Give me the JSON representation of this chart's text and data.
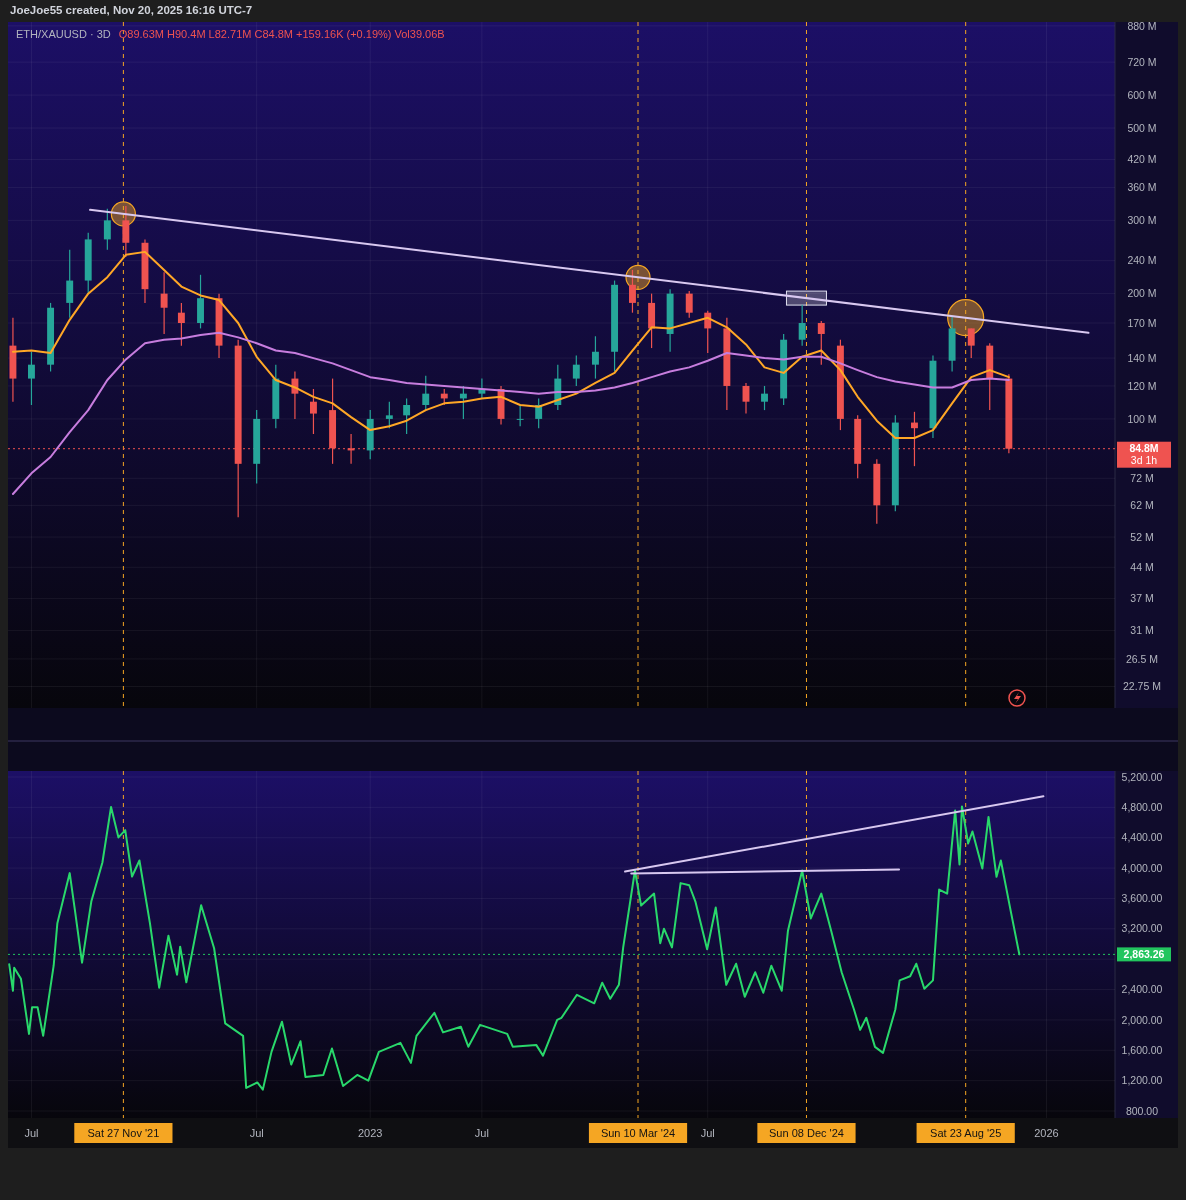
{
  "chart_data": [
    {
      "type": "candlestick",
      "title": "ETH/XAUUSD · 3D",
      "subtitle": "O89.63M H90.4M L82.71M C84.8M +159.16K (+0.19%) Vol39.06B",
      "annotations": [
        "JoeJoe55 created, Nov 20, 2025 16:16 UTC-7"
      ],
      "x": [
        "2021-06-01",
        "2021-07-01",
        "2021-08-01",
        "2021-09-01",
        "2021-10-01",
        "2021-11-01",
        "2021-12-01",
        "2022-01-01",
        "2022-02-01",
        "2022-03-01",
        "2022-04-01",
        "2022-05-01",
        "2022-06-01",
        "2022-07-01",
        "2022-08-01",
        "2022-09-01",
        "2022-10-01",
        "2022-11-01",
        "2022-12-01",
        "2023-01-01",
        "2023-02-01",
        "2023-03-01",
        "2023-04-01",
        "2023-05-01",
        "2023-06-01",
        "2023-07-01",
        "2023-08-01",
        "2023-09-01",
        "2023-10-01",
        "2023-11-01",
        "2023-12-01",
        "2024-01-01",
        "2024-02-01",
        "2024-03-01",
        "2024-04-01",
        "2024-05-01",
        "2024-06-01",
        "2024-07-01",
        "2024-08-01",
        "2024-09-01",
        "2024-10-01",
        "2024-11-01",
        "2024-12-01",
        "2025-01-01",
        "2025-02-01",
        "2025-03-01",
        "2025-04-01",
        "2025-05-01",
        "2025-06-01",
        "2025-07-01",
        "2025-08-01",
        "2025-09-01",
        "2025-10-01",
        "2025-11-01"
      ],
      "ohlc": [
        [
          150,
          175,
          110,
          125
        ],
        [
          125,
          145,
          108,
          135
        ],
        [
          135,
          190,
          130,
          185
        ],
        [
          190,
          255,
          175,
          215
        ],
        [
          215,
          280,
          200,
          270
        ],
        [
          270,
          320,
          255,
          300
        ],
        [
          300,
          325,
          245,
          265
        ],
        [
          265,
          270,
          190,
          205
        ],
        [
          200,
          225,
          160,
          185
        ],
        [
          180,
          190,
          150,
          170
        ],
        [
          170,
          222,
          165,
          195
        ],
        [
          195,
          200,
          140,
          150
        ],
        [
          150,
          155,
          58,
          78
        ],
        [
          78,
          105,
          70,
          100
        ],
        [
          100,
          135,
          95,
          125
        ],
        [
          125,
          130,
          100,
          115
        ],
        [
          110,
          118,
          92,
          103
        ],
        [
          105,
          125,
          78,
          85
        ],
        [
          85,
          92,
          78,
          84
        ],
        [
          84,
          105,
          80,
          100
        ],
        [
          100,
          110,
          95,
          102
        ],
        [
          102,
          112,
          92,
          108
        ],
        [
          108,
          127,
          105,
          115
        ],
        [
          115,
          118,
          108,
          112
        ],
        [
          112,
          120,
          100,
          115
        ],
        [
          115,
          125,
          112,
          118
        ],
        [
          118,
          120,
          97,
          100
        ],
        [
          100,
          108,
          96,
          100
        ],
        [
          100,
          112,
          95,
          108
        ],
        [
          108,
          135,
          105,
          125
        ],
        [
          125,
          142,
          120,
          135
        ],
        [
          135,
          158,
          125,
          145
        ],
        [
          145,
          215,
          130,
          210
        ],
        [
          210,
          228,
          180,
          190
        ],
        [
          190,
          200,
          148,
          165
        ],
        [
          160,
          205,
          145,
          200
        ],
        [
          200,
          203,
          175,
          180
        ],
        [
          180,
          182,
          144,
          165
        ],
        [
          165,
          175,
          105,
          120
        ],
        [
          120,
          122,
          103,
          110
        ],
        [
          110,
          120,
          105,
          115
        ],
        [
          112,
          160,
          108,
          155
        ],
        [
          155,
          188,
          150,
          170
        ],
        [
          170,
          172,
          135,
          160
        ],
        [
          150,
          155,
          94,
          100
        ],
        [
          100,
          102,
          72,
          78
        ],
        [
          78,
          80,
          56,
          62
        ],
        [
          62,
          102,
          60,
          98
        ],
        [
          98,
          104,
          77,
          95
        ],
        [
          95,
          142,
          90,
          138
        ],
        [
          138,
          176,
          130,
          165
        ],
        [
          165,
          165,
          140,
          150
        ],
        [
          150,
          152,
          105,
          125
        ],
        [
          125,
          128,
          82.71,
          84.8
        ]
      ],
      "colors": [
        "#ef5350",
        "#26a69a",
        "#26a69a",
        "#26a69a",
        "#26a69a",
        "#26a69a",
        "#ef5350",
        "#ef5350",
        "#ef5350",
        "#ef5350",
        "#26a69a",
        "#ef5350",
        "#ef5350",
        "#26a69a",
        "#26a69a",
        "#ef5350",
        "#ef5350",
        "#ef5350",
        "#ef5350",
        "#26a69a",
        "#26a69a",
        "#26a69a",
        "#26a69a",
        "#ef5350",
        "#26a69a",
        "#26a69a",
        "#ef5350",
        "#26a69a",
        "#26a69a",
        "#26a69a",
        "#26a69a",
        "#26a69a",
        "#26a69a",
        "#ef5350",
        "#ef5350",
        "#26a69a",
        "#ef5350",
        "#ef5350",
        "#ef5350",
        "#ef5350",
        "#26a69a",
        "#26a69a",
        "#26a69a",
        "#ef5350",
        "#ef5350",
        "#ef5350",
        "#ef5350",
        "#26a69a",
        "#ef5350",
        "#26a69a",
        "#26a69a",
        "#ef5350",
        "#ef5350",
        "#ef5350"
      ],
      "series": [
        {
          "type": "line",
          "color": "#ffa726",
          "values": [
            145,
            146,
            144,
            173,
            200,
            219,
            248,
            252,
            228,
            208,
            198,
            193,
            170,
            141,
            124,
            119,
            113,
            109,
            101,
            94,
            96,
            99,
            105,
            109,
            110,
            112,
            113,
            108,
            107,
            111,
            115,
            122,
            129,
            146,
            166,
            165,
            170,
            175,
            166,
            151,
            133,
            129,
            141,
            146,
            131,
            113,
            99,
            90,
            90,
            94,
            109,
            126,
            131,
            126
          ]
        },
        {
          "type": "line",
          "color": "#c77dde",
          "values": [
            66,
            74,
            81,
            93,
            105,
            124,
            139,
            152,
            155,
            156,
            159,
            161,
            157,
            152,
            146,
            144,
            140,
            136,
            131,
            126,
            124,
            122,
            121,
            120,
            119,
            118,
            117,
            116,
            115,
            116,
            116,
            117,
            119,
            122,
            126,
            130,
            133,
            138,
            144,
            142,
            140,
            139,
            141,
            141,
            136,
            131,
            126,
            123,
            121,
            119,
            119,
            124,
            125,
            124
          ]
        },
        {
          "type": "line",
          "color": "#d8c8f0",
          "x": [
            "2021-10-04",
            "2026-03-10"
          ],
          "values": [
            318,
            161
          ]
        }
      ],
      "log": true,
      "grid": true,
      "tick_labels": "y",
      "xlim": [
        "2021-05-24",
        "2026-04-22"
      ],
      "xticks": [
        {
          "value": "2021-07-01",
          "label": null
        },
        {
          "value": "2022-07-01",
          "label": null
        },
        {
          "value": "2023-01-01",
          "label": null
        },
        {
          "value": "2023-07-01",
          "label": null
        },
        {
          "value": "2024-07-01",
          "label": null
        },
        {
          "value": "2026-01-01",
          "label": null
        }
      ],
      "ylim": [
        20.2,
        899
      ],
      "yticks": [
        {
          "value": 880,
          "label": "880 M"
        },
        {
          "value": 720,
          "label": "720 M"
        },
        {
          "value": 600,
          "label": "600 M"
        },
        {
          "value": 500,
          "label": "500 M"
        },
        {
          "value": 420,
          "label": "420 M"
        },
        {
          "value": 360,
          "label": "360 M"
        },
        {
          "value": 300,
          "label": "300 M"
        },
        {
          "value": 240,
          "label": "240 M"
        },
        {
          "value": 200,
          "label": "200 M"
        },
        {
          "value": 170,
          "label": "170 M"
        },
        {
          "value": 140,
          "label": "140 M"
        },
        {
          "value": 120,
          "label": "120 M"
        },
        {
          "value": 100,
          "label": "100 M"
        },
        {
          "value": 72,
          "label": "72 M"
        },
        {
          "value": 62,
          "label": "62 M"
        },
        {
          "value": 52,
          "label": "52 M"
        },
        {
          "value": 44,
          "label": "44 M"
        },
        {
          "value": 37,
          "label": "37 M"
        },
        {
          "value": 31,
          "label": "31 M"
        },
        {
          "value": 26.5,
          "label": "26.5 M"
        },
        {
          "value": 22.75,
          "label": "22.75 M"
        }
      ],
      "ref_lines": [
        {
          "axis": "x",
          "value": "2021-11-27",
          "color": "#f5a623",
          "line_style": "dashed"
        },
        {
          "axis": "x",
          "value": "2024-03-10",
          "color": "#f5a623",
          "line_style": "dashed"
        },
        {
          "axis": "x",
          "value": "2024-12-08",
          "color": "#f5a623",
          "line_style": "dashed"
        },
        {
          "axis": "x",
          "value": "2025-08-23",
          "color": "#f5a623",
          "line_style": "dashed"
        },
        {
          "axis": "y",
          "value": 84.8,
          "label": "84.8M\n3d 1h",
          "color": "#ef5350",
          "line_style": "dotted"
        }
      ]
    },
    {
      "type": "line",
      "series": [
        {
          "color": "#29d86b",
          "x": [
            "2021-05-26",
            "2021-06-01",
            "2021-06-03",
            "2021-06-14",
            "2021-06-27",
            "2021-07-02",
            "2021-07-11",
            "2021-07-20",
            "2021-08-06",
            "2021-08-12",
            "2021-09-01",
            "2021-09-10",
            "2021-09-21",
            "2021-10-06",
            "2021-10-24",
            "2021-11-07",
            "2021-11-19",
            "2021-11-30",
            "2021-12-11",
            "2021-12-23",
            "2022-01-09",
            "2022-01-24",
            "2022-02-08",
            "2022-02-22",
            "2022-02-27",
            "2022-03-09",
            "2022-03-23",
            "2022-04-02",
            "2022-04-23",
            "2022-05-11",
            "2022-06-09",
            "2022-06-14",
            "2022-07-02",
            "2022-07-11",
            "2022-07-25",
            "2022-08-11",
            "2022-08-26",
            "2022-09-10",
            "2022-09-18",
            "2022-10-17",
            "2022-10-31",
            "2022-11-18",
            "2022-12-11",
            "2022-12-29",
            "2023-01-15",
            "2023-02-19",
            "2023-03-08",
            "2023-03-17",
            "2023-04-15",
            "2023-04-29",
            "2023-05-28",
            "2023-06-09",
            "2023-06-28",
            "2023-08-11",
            "2023-08-20",
            "2023-09-27",
            "2023-10-08",
            "2023-10-31",
            "2023-11-07",
            "2023-12-02",
            "2023-12-30",
            "2024-01-12",
            "2024-01-25",
            "2024-02-08",
            "2024-02-15",
            "2024-03-05",
            "2024-03-15",
            "2024-04-05",
            "2024-04-15",
            "2024-04-21",
            "2024-05-04",
            "2024-05-18",
            "2024-06-01",
            "2024-06-11",
            "2024-06-30",
            "2024-07-14",
            "2024-07-31",
            "2024-08-16",
            "2024-08-30",
            "2024-09-16",
            "2024-09-29",
            "2024-10-12",
            "2024-10-29",
            "2024-11-08",
            "2024-12-01",
            "2024-12-15",
            "2025-01-01",
            "2025-01-17",
            "2025-02-03",
            "2025-02-23",
            "2025-03-05",
            "2025-03-15",
            "2025-03-29",
            "2025-04-11",
            "2025-05-01",
            "2025-05-08",
            "2025-05-25",
            "2025-06-04",
            "2025-06-17",
            "2025-07-01",
            "2025-07-11",
            "2025-07-24",
            "2025-08-06",
            "2025-08-13",
            "2025-08-17",
            "2025-08-27",
            "2025-09-03",
            "2025-09-19",
            "2025-09-29",
            "2025-10-12",
            "2025-10-19",
            "2025-11-05",
            "2025-11-18"
          ],
          "values": [
            2733,
            2384,
            2688,
            2542,
            1816,
            2166,
            2166,
            1790,
            2714,
            3274,
            3934,
            3414,
            2754,
            3559,
            4074,
            4806,
            4404,
            4500,
            3889,
            4100,
            3274,
            2424,
            3110,
            2595,
            2965,
            2496,
            3084,
            3510,
            2944,
            1954,
            1790,
            1104,
            1176,
            1082,
            1579,
            1977,
            1412,
            1719,
            1249,
            1275,
            1624,
            1130,
            1275,
            1200,
            1579,
            1698,
            1434,
            1790,
            2094,
            1836,
            1909,
            1647,
            1935,
            1816,
            1647,
            1671,
            1530,
            2001,
            2028,
            2331,
            2219,
            2490,
            2278,
            2463,
            2956,
            3968,
            3506,
            3664,
            3010,
            3202,
            2956,
            3802,
            3774,
            3559,
            2930,
            3480,
            2463,
            2740,
            2305,
            2628,
            2358,
            2714,
            2384,
            3176,
            3968,
            3337,
            3664,
            3176,
            2628,
            2137,
            1869,
            2028,
            1645,
            1566,
            2137,
            2521,
            2575,
            2740,
            2410,
            2521,
            3717,
            3664,
            4760,
            4047,
            4813,
            4324,
            4483,
            3994,
            4674,
            3885,
            4100,
            3394,
            2863.26
          ]
        },
        {
          "color": "#d8c8f0",
          "x": [
            "2024-02-18",
            "2025-12-27"
          ],
          "values": [
            3955,
            4945
          ]
        },
        {
          "color": "#d8c8f0",
          "x": [
            "2024-02-28",
            "2025-05-07"
          ],
          "values": [
            3928,
            3981
          ]
        }
      ],
      "grid": true,
      "xlim": [
        "2021-05-24",
        "2026-04-22"
      ],
      "xticks": [
        {
          "value": "2021-07-01",
          "label": "Jul"
        },
        {
          "value": "2022-07-01",
          "label": "Jul"
        },
        {
          "value": "2023-01-01",
          "label": "2023"
        },
        {
          "value": "2023-07-01",
          "label": "Jul"
        },
        {
          "value": "2024-07-01",
          "label": "Jul"
        },
        {
          "value": "2026-01-01",
          "label": "2026"
        }
      ],
      "ylim": [
        708,
        5279
      ],
      "yticks": [
        {
          "value": 800,
          "label": "800.00"
        },
        {
          "value": 1200,
          "label": "1,200.00"
        },
        {
          "value": 1600,
          "label": "1,600.00"
        },
        {
          "value": 2000,
          "label": "2,000.00"
        },
        {
          "value": 2400,
          "label": "2,400.00"
        },
        {
          "value": 2800,
          "label": null
        },
        {
          "value": 3200,
          "label": "3,200.00"
        },
        {
          "value": 3600,
          "label": "3,600.00"
        },
        {
          "value": 4000,
          "label": "4,000.00"
        },
        {
          "value": 4400,
          "label": "4,400.00"
        },
        {
          "value": 4800,
          "label": "4,800.00"
        },
        {
          "value": 5200,
          "label": "5,200.00"
        }
      ],
      "ref_lines": [
        {
          "axis": "x",
          "value": "2021-11-27",
          "label": "Sat 27 Nov '21",
          "color": "#f5a623",
          "line_style": "dashed"
        },
        {
          "axis": "x",
          "value": "2024-03-10",
          "label": "Sun 10 Mar '24",
          "color": "#f5a623",
          "line_style": "dashed"
        },
        {
          "axis": "x",
          "value": "2024-12-08",
          "label": "Sun 08 Dec '24",
          "color": "#f5a623",
          "line_style": "dashed"
        },
        {
          "axis": "x",
          "value": "2025-08-23",
          "label": "Sat 23 Aug '25",
          "color": "#f5a623",
          "line_style": "dashed"
        },
        {
          "axis": "y",
          "value": 2863.26,
          "label": "2,863.26",
          "color": "#22c55e",
          "line_style": "dotted"
        }
      ]
    }
  ]
}
